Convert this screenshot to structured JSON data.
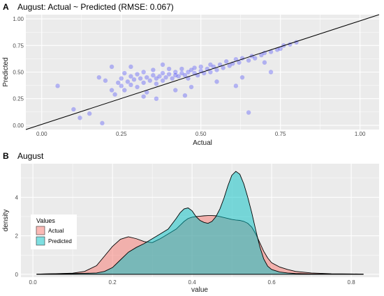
{
  "chart_data": [
    {
      "type": "scatter",
      "tag": "A",
      "title": "August: Actual ~ Predicted (RMSE: 0.067)",
      "xlabel": "Actual",
      "ylabel": "Predicted",
      "xlim": [
        -0.05,
        1.06
      ],
      "ylim": [
        -0.04,
        1.04
      ],
      "x_ticks": [
        0.0,
        0.25,
        0.5,
        0.75,
        1.0
      ],
      "x_tick_labels": [
        "0.00",
        "0.25",
        "0.50",
        "0.75",
        "1.00"
      ],
      "y_ticks": [
        0.0,
        0.25,
        0.5,
        0.75,
        1.0
      ],
      "y_tick_labels": [
        "0.00",
        "0.25",
        "0.50",
        "0.75",
        "1.00"
      ],
      "point_color": "#0000ff",
      "point_opacity": 0.25,
      "reference_line": {
        "kind": "identity",
        "x": [
          -0.05,
          1.06
        ],
        "y": [
          -0.04,
          1.04
        ],
        "color": "#000000"
      },
      "grid": true,
      "points": [
        [
          0.05,
          0.37
        ],
        [
          0.1,
          0.15
        ],
        [
          0.12,
          0.07
        ],
        [
          0.15,
          0.11
        ],
        [
          0.19,
          0.02
        ],
        [
          0.18,
          0.45
        ],
        [
          0.2,
          0.42
        ],
        [
          0.22,
          0.33
        ],
        [
          0.23,
          0.29
        ],
        [
          0.22,
          0.55
        ],
        [
          0.24,
          0.4
        ],
        [
          0.25,
          0.37
        ],
        [
          0.25,
          0.44
        ],
        [
          0.26,
          0.49
        ],
        [
          0.26,
          0.33
        ],
        [
          0.27,
          0.41
        ],
        [
          0.28,
          0.46
        ],
        [
          0.28,
          0.38
        ],
        [
          0.29,
          0.43
        ],
        [
          0.3,
          0.48
        ],
        [
          0.3,
          0.36
        ],
        [
          0.31,
          0.44
        ],
        [
          0.32,
          0.4
        ],
        [
          0.32,
          0.5
        ],
        [
          0.33,
          0.45
        ],
        [
          0.33,
          0.31
        ],
        [
          0.34,
          0.42
        ],
        [
          0.35,
          0.47
        ],
        [
          0.35,
          0.52
        ],
        [
          0.36,
          0.44
        ],
        [
          0.36,
          0.39
        ],
        [
          0.37,
          0.46
        ],
        [
          0.38,
          0.49
        ],
        [
          0.38,
          0.42
        ],
        [
          0.39,
          0.45
        ],
        [
          0.4,
          0.48
        ],
        [
          0.4,
          0.53
        ],
        [
          0.41,
          0.44
        ],
        [
          0.42,
          0.47
        ],
        [
          0.42,
          0.5
        ],
        [
          0.43,
          0.46
        ],
        [
          0.44,
          0.49
        ],
        [
          0.44,
          0.53
        ],
        [
          0.45,
          0.47
        ],
        [
          0.46,
          0.5
        ],
        [
          0.46,
          0.44
        ],
        [
          0.47,
          0.52
        ],
        [
          0.48,
          0.49
        ],
        [
          0.48,
          0.54
        ],
        [
          0.49,
          0.47
        ],
        [
          0.5,
          0.51
        ],
        [
          0.5,
          0.55
        ],
        [
          0.51,
          0.49
        ],
        [
          0.52,
          0.53
        ],
        [
          0.53,
          0.57
        ],
        [
          0.53,
          0.5
        ],
        [
          0.54,
          0.55
        ],
        [
          0.55,
          0.52
        ],
        [
          0.56,
          0.57
        ],
        [
          0.57,
          0.54
        ],
        [
          0.58,
          0.6
        ],
        [
          0.59,
          0.56
        ],
        [
          0.6,
          0.58
        ],
        [
          0.61,
          0.62
        ],
        [
          0.62,
          0.59
        ],
        [
          0.63,
          0.63
        ],
        [
          0.65,
          0.61
        ],
        [
          0.66,
          0.65
        ],
        [
          0.67,
          0.63
        ],
        [
          0.69,
          0.66
        ],
        [
          0.7,
          0.68
        ],
        [
          0.72,
          0.69
        ],
        [
          0.74,
          0.71
        ],
        [
          0.75,
          0.72
        ],
        [
          0.76,
          0.75
        ],
        [
          0.78,
          0.76
        ],
        [
          0.8,
          0.78
        ],
        [
          0.32,
          0.27
        ],
        [
          0.36,
          0.25
        ],
        [
          0.42,
          0.33
        ],
        [
          0.47,
          0.36
        ],
        [
          0.55,
          0.41
        ],
        [
          0.63,
          0.45
        ],
        [
          0.61,
          0.37
        ],
        [
          0.65,
          0.12
        ],
        [
          0.72,
          0.5
        ],
        [
          0.45,
          0.28
        ],
        [
          0.38,
          0.57
        ],
        [
          0.28,
          0.55
        ],
        [
          0.7,
          0.59
        ]
      ]
    },
    {
      "type": "area",
      "tag": "B",
      "title": "August",
      "xlabel": "value",
      "ylabel": "density",
      "xlim": [
        -0.03,
        0.87
      ],
      "ylim": [
        -0.15,
        5.75
      ],
      "x_ticks": [
        0.0,
        0.2,
        0.4,
        0.6,
        0.8
      ],
      "x_tick_labels": [
        "0.0",
        "0.2",
        "0.4",
        "0.6",
        "0.8"
      ],
      "y_ticks": [
        0,
        2,
        4
      ],
      "y_tick_labels": [
        "0",
        "2",
        "4"
      ],
      "grid": true,
      "x": [
        0.01,
        0.05,
        0.1,
        0.13,
        0.16,
        0.18,
        0.2,
        0.22,
        0.24,
        0.26,
        0.28,
        0.3,
        0.32,
        0.34,
        0.36,
        0.37,
        0.38,
        0.39,
        0.4,
        0.41,
        0.42,
        0.43,
        0.44,
        0.45,
        0.46,
        0.47,
        0.48,
        0.49,
        0.5,
        0.51,
        0.52,
        0.53,
        0.54,
        0.55,
        0.56,
        0.57,
        0.58,
        0.59,
        0.6,
        0.62,
        0.64,
        0.66,
        0.7,
        0.75,
        0.8,
        0.83
      ],
      "series": [
        {
          "name": "Actual",
          "color": "#f8766d",
          "values": [
            0.01,
            0.03,
            0.06,
            0.15,
            0.45,
            0.95,
            1.45,
            1.82,
            1.95,
            1.85,
            1.7,
            1.65,
            1.85,
            2.1,
            2.35,
            2.55,
            2.75,
            2.9,
            2.97,
            3.0,
            3.02,
            3.04,
            3.05,
            3.05,
            3.04,
            3.0,
            2.95,
            2.9,
            2.85,
            2.82,
            2.8,
            2.75,
            2.65,
            2.45,
            2.1,
            1.65,
            1.2,
            0.85,
            0.6,
            0.38,
            0.25,
            0.15,
            0.07,
            0.03,
            0.02,
            0.01
          ]
        },
        {
          "name": "Predicted",
          "color": "#00bfc4",
          "values": [
            0.01,
            0.03,
            0.04,
            0.05,
            0.07,
            0.15,
            0.35,
            0.75,
            1.15,
            1.4,
            1.6,
            1.85,
            2.1,
            2.35,
            2.9,
            3.2,
            3.4,
            3.45,
            3.3,
            3.0,
            2.8,
            2.7,
            2.65,
            2.75,
            3.0,
            3.4,
            3.95,
            4.6,
            5.15,
            5.35,
            5.2,
            4.7,
            4.0,
            3.2,
            2.3,
            1.45,
            0.8,
            0.42,
            0.25,
            0.12,
            0.07,
            0.04,
            0.02,
            0.01,
            0.01,
            0.01
          ]
        }
      ],
      "legend": {
        "title": "Values",
        "position": "left",
        "entries": [
          "Actual",
          "Predicted"
        ]
      }
    }
  ]
}
